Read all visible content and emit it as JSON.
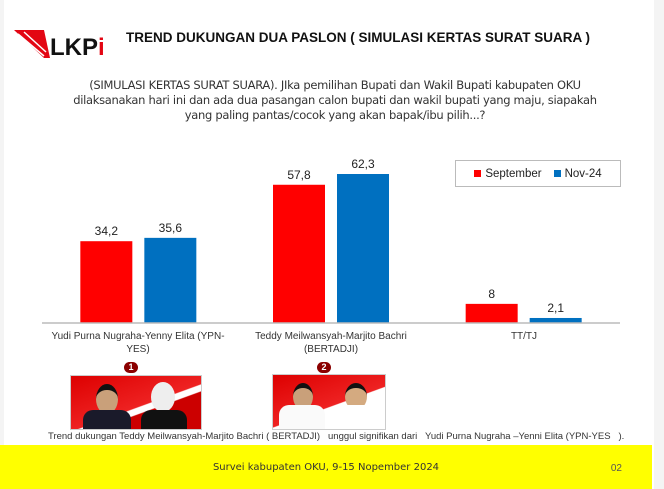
{
  "header": {
    "logo_text": "LKPi",
    "title": "TREND DUKUNGAN DUA PASLON ( SIMULASI KERTAS SURAT SUARA )"
  },
  "question": "(SIMULASI KERTAS SURAT SUARA). JIka pemilihan Bupati dan Wakil Bupati kabupaten OKU dilaksanakan hari ini dan ada dua pasangan calon bupati dan wakil bupati yang maju, siapakah yang paling pantas/cocok yang akan bapak/ibu pilih...?",
  "chart_data": {
    "type": "bar",
    "categories": [
      "Yudi Purna Nugraha-Yenny Elita (YPN-YES)",
      "Teddy Meilwansyah-Marjito Bachri (BERTADJI)",
      "TT/TJ"
    ],
    "series": [
      {
        "name": "September",
        "color": "#ff0000",
        "values": [
          34.2,
          57.8,
          8
        ],
        "labels": [
          "34,2",
          "57,8",
          "8"
        ]
      },
      {
        "name": "Nov-24",
        "color": "#0070c0",
        "values": [
          35.6,
          62.3,
          2.1
        ],
        "labels": [
          "35,6",
          "62,3",
          "2,1"
        ]
      }
    ],
    "ylim": [
      0,
      70
    ],
    "grid": false,
    "legend": "top-right"
  },
  "candidates": [
    {
      "number": "1"
    },
    {
      "number": "2"
    }
  ],
  "summary": "Trend dukungan Teddy Meilwansyah-Marjito Bachri ( BERTADJI)   unggul signifikan dari   Yudi Purna Nugraha –Yenni Elita (YPN-YES   ).",
  "footer": {
    "text": "Survei kabupaten OKU, 9-15 Nopember 2024",
    "page": "02"
  }
}
